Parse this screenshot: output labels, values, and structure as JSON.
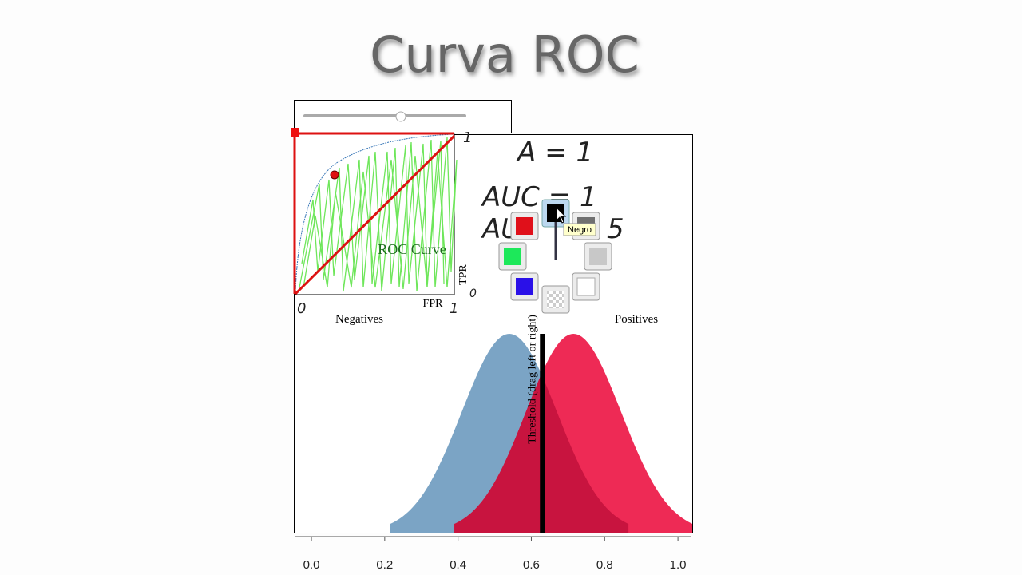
{
  "header": {
    "title": "Curva ROC"
  },
  "roc_inset": {
    "title": "ROC Curve",
    "x_label": "FPR",
    "y_label": "TPR",
    "slider_value": 0.6
  },
  "annotations": {
    "line1": "A = 1",
    "line2": "AUC = 1",
    "line3": "AU",
    "line3_end": "5",
    "origin": "0",
    "x_end": "1",
    "y_end": "1",
    "y_start": "0"
  },
  "plot": {
    "negatives_label": "Negatives",
    "positives_label": "Positives",
    "threshold_label": "Threshold (drag left or right)",
    "threshold": 0.63,
    "xlim": [
      -0.048,
      1.039
    ],
    "xticks": [
      {
        "value": 0,
        "label": "0.0"
      },
      {
        "value": 0.2,
        "label": "0.2"
      },
      {
        "value": 0.4,
        "label": "0.4"
      },
      {
        "value": 0.6,
        "label": "0.6"
      },
      {
        "value": 0.8,
        "label": "0.8"
      },
      {
        "value": 1,
        "label": "1.0"
      }
    ],
    "negatives": {
      "mean": 0.54,
      "sd": 0.13,
      "color": "#7ba4c5"
    },
    "positives": {
      "mean": 0.715,
      "sd": 0.13,
      "color": "#ee2a55"
    },
    "overlap_color": "#c8143f"
  },
  "palette": {
    "tooltip": "Negro"
  }
}
